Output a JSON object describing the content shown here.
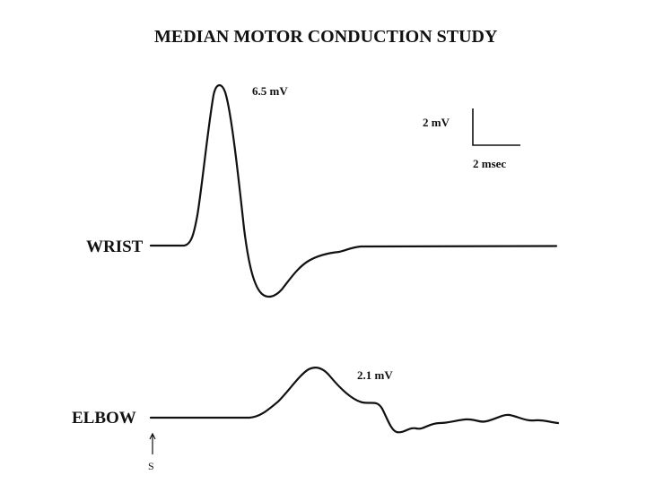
{
  "title": "MEDIAN MOTOR CONDUCTION  STUDY",
  "traces": [
    {
      "site": "WRIST",
      "amplitude_label": "6.5 mV"
    },
    {
      "site": "ELBOW",
      "amplitude_label": "2.1 mV"
    }
  ],
  "scale_bar": {
    "amplitude_label": "2 mV",
    "time_label": "2 msec"
  },
  "stimulus_marker": "S"
}
